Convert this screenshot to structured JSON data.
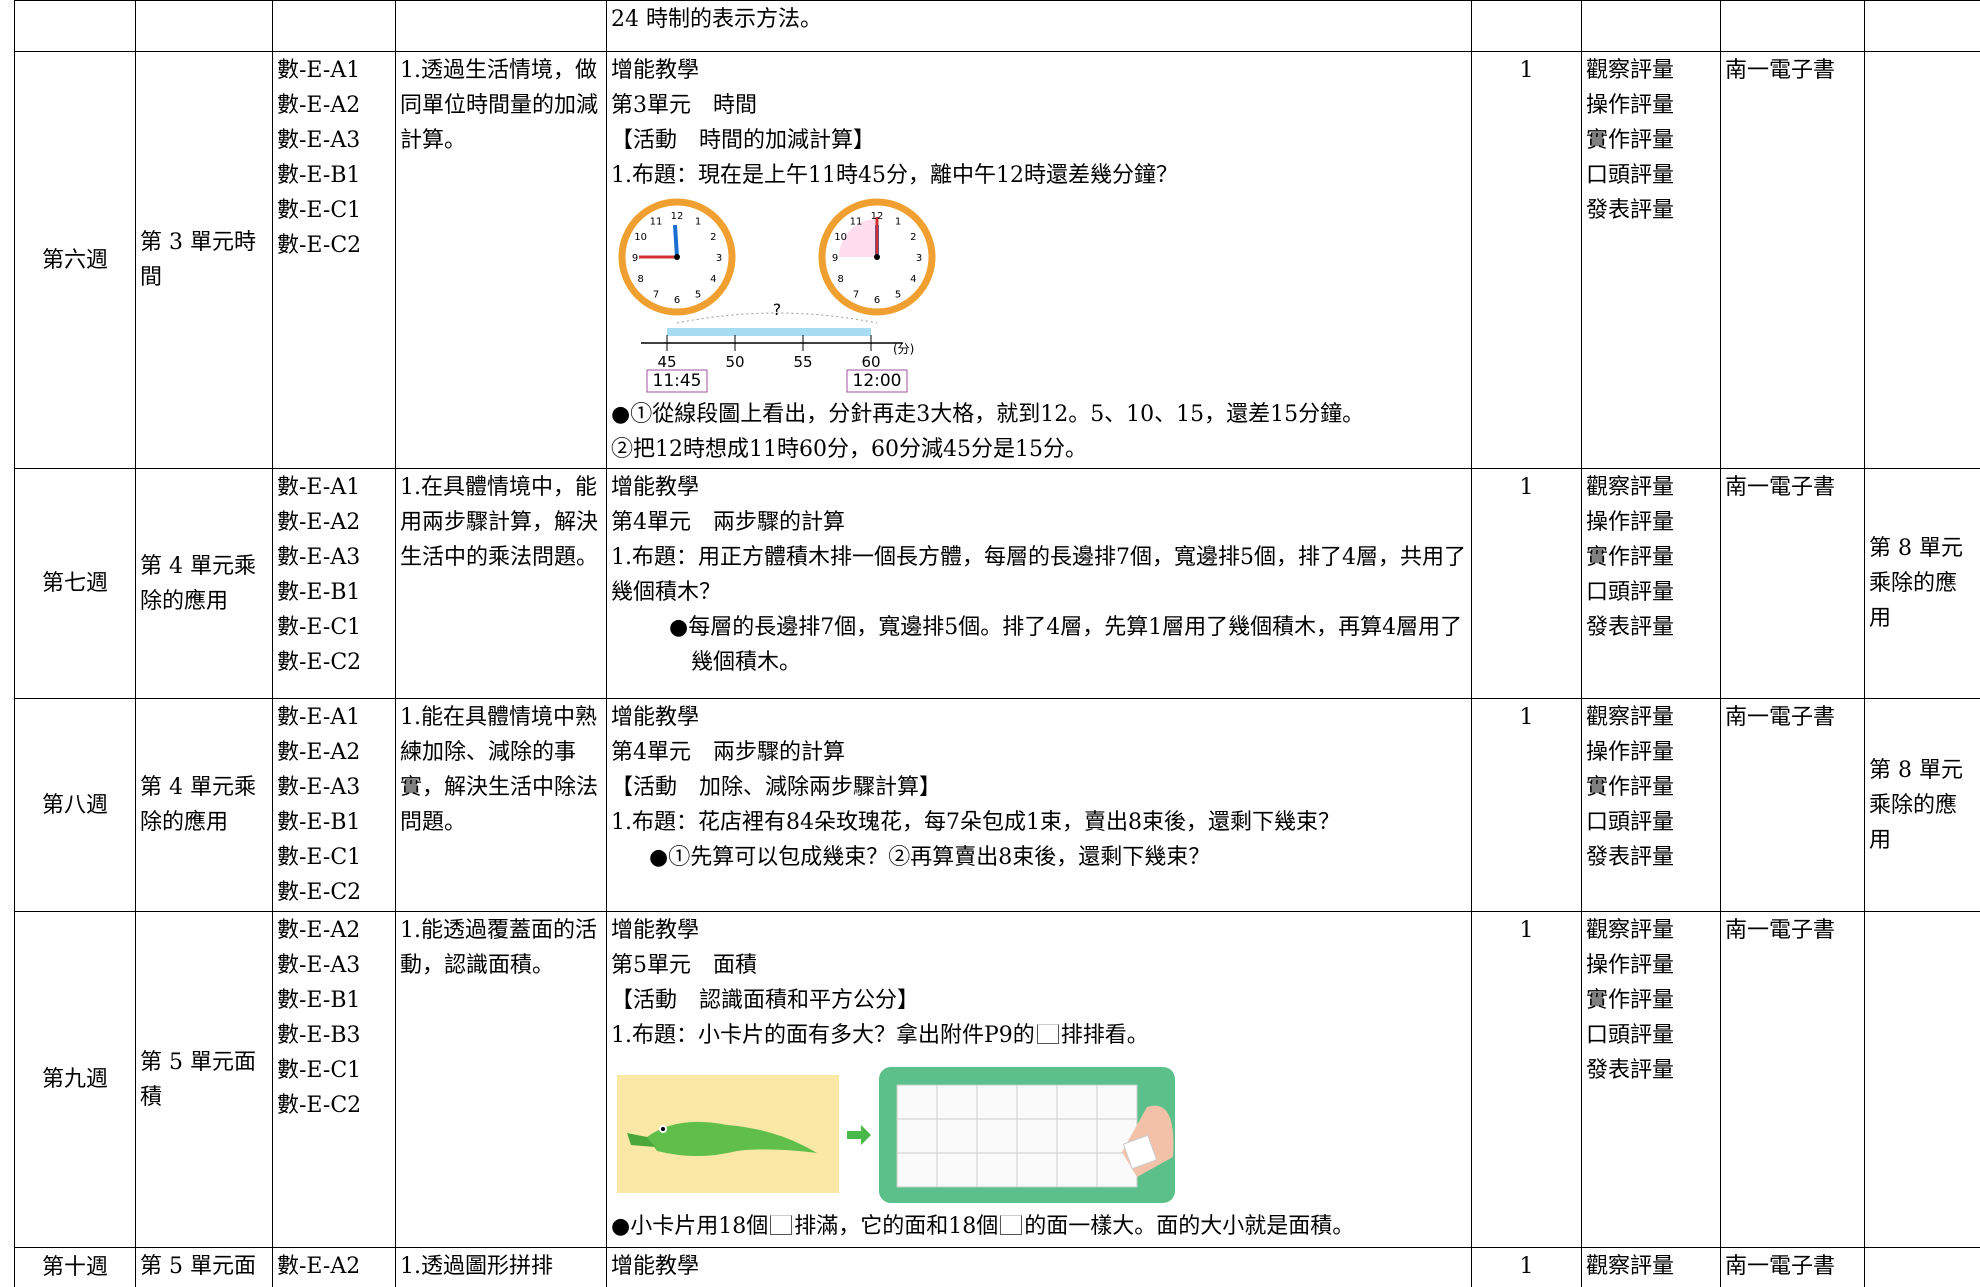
{
  "clock_numerals": [
    "12",
    "1",
    "2",
    "3",
    "4",
    "5",
    "6",
    "7",
    "8",
    "9",
    "10",
    "11"
  ],
  "number_line": {
    "ticks": [
      "45",
      "50",
      "55",
      "60"
    ],
    "unit": "(分)",
    "question": "?",
    "times": [
      "11:45",
      "12:00"
    ]
  },
  "rows": [
    {
      "content": [
        "24 時制的表示方法。"
      ]
    },
    {
      "week": "第六週",
      "unit": "第 3 單元時間",
      "codes": [
        "數-E-A1",
        "數-E-A2",
        "數-E-A3",
        "數-E-B1",
        "數-E-C1",
        "數-E-C2"
      ],
      "objective": "1.透過生活情境，做同單位時間量的加減計算。",
      "content": [
        "增能教學",
        "第3單元　時間",
        "【活動　時間的加減計算】",
        "1.布題：現在是上午11時45分，離中午12時還差幾分鐘？",
        "●①從線段圖上看出，分針再走3大格，就到12。5、10、15，還差15分鐘。",
        "②把12時想成11時60分，60分減45分是15分。"
      ],
      "periods": "1",
      "assessment": [
        "觀察評量",
        "操作評量",
        "實作評量",
        "口頭評量",
        "發表評量"
      ],
      "resources": "南一電子書"
    },
    {
      "week": "第七週",
      "unit": "第 4 單元乘除的應用",
      "codes": [
        "數-E-A1",
        "數-E-A2",
        "數-E-A3",
        "數-E-B1",
        "數-E-C1",
        "數-E-C2"
      ],
      "objective": "1.在具體情境中，能用兩步驟計算，解決生活中的乘法問題。",
      "content": [
        "增能教學",
        "第4單元　兩步驟的計算",
        "1.布題：用正方體積木排一個長方體，每層的長邊排7個，寬邊排5個，排了4層，共用了幾個積木？",
        "●每層的長邊排7個，寬邊排5個。排了4層，先算1層用了幾個積木，再算4層用了幾個積木。"
      ],
      "periods": "1",
      "assessment": [
        "觀察評量",
        "操作評量",
        "實作評量",
        "口頭評量",
        "發表評量"
      ],
      "resources": "南一電子書",
      "note": "第 8 單元乘除的應用"
    },
    {
      "week": "第八週",
      "unit": "第 4 單元乘除的應用",
      "codes": [
        "數-E-A1",
        "數-E-A2",
        "數-E-A3",
        "數-E-B1",
        "數-E-C1",
        "數-E-C2"
      ],
      "objective": "1.能在具體情境中熟練加除、減除的事實，解決生活中除法問題。",
      "content": [
        "增能教學",
        "第4單元　兩步驟的計算",
        "【活動　加除、減除兩步驟計算】",
        "1.布題：花店裡有84朵玫瑰花，每7朵包成1束，賣出8束後，還剩下幾束？",
        "●①先算可以包成幾束？②再算賣出8束後，還剩下幾束？"
      ],
      "periods": "1",
      "assessment": [
        "觀察評量",
        "操作評量",
        "實作評量",
        "口頭評量",
        "發表評量"
      ],
      "resources": "南一電子書",
      "note": "第 8 單元乘除的應用"
    },
    {
      "week": "第九週",
      "unit": "第 5 單元面積",
      "codes": [
        "數-E-A2",
        "數-E-A3",
        "數-E-B1",
        "數-E-B3",
        "數-E-C1",
        "數-E-C2"
      ],
      "objective": "1.能透過覆蓋面的活動，認識面積。",
      "content": [
        "增能教學",
        "第5單元　面積",
        "【活動　認識面積和平方公分】",
        [
          "1.布題：小卡片的面有多大？拿出附件P9的",
          "排排看。"
        ],
        [
          "●小卡片用18個",
          "排滿，它的面和18個",
          "的面一樣大。面的大小就是面積。"
        ]
      ],
      "periods": "1",
      "assessment": [
        "觀察評量",
        "操作評量",
        "實作評量",
        "口頭評量",
        "發表評量"
      ],
      "resources": "南一電子書"
    },
    {
      "week": "第十週",
      "unit": "第 5 單元面",
      "codes": [
        "數-E-A2"
      ],
      "objective": "1.透過圖形拼排",
      "content": [
        "增能教學"
      ],
      "periods": "1",
      "assessment": [
        "觀察評量"
      ],
      "resources": "南一電子書"
    }
  ]
}
